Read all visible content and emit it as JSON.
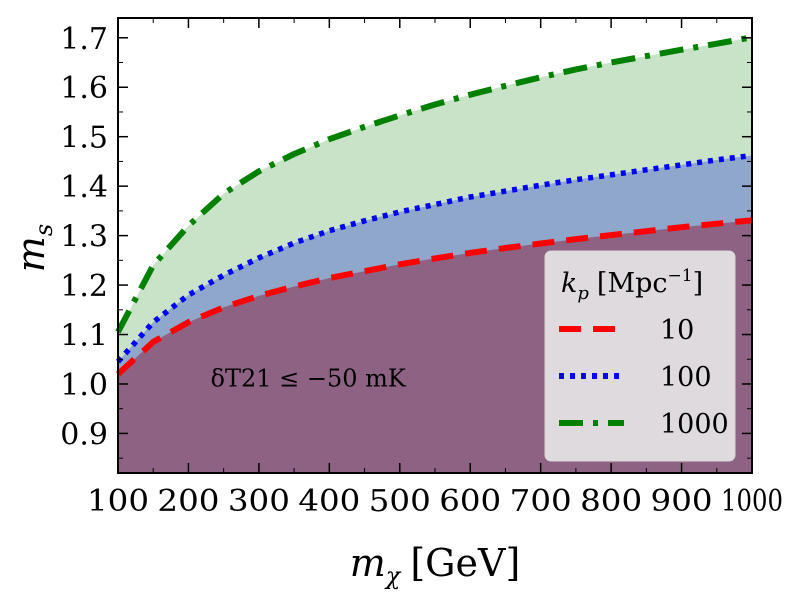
{
  "chart_data": {
    "type": "area",
    "title": "",
    "xlabel": {
      "symbol": "m",
      "sub": "χ",
      "unit": "[GeV]"
    },
    "ylabel": {
      "symbol": "m",
      "sub": "s"
    },
    "xlim": [
      100,
      1000
    ],
    "ylim": [
      0.82,
      1.74
    ],
    "xticks": [
      100,
      200,
      300,
      400,
      500,
      600,
      700,
      800,
      900,
      1000
    ],
    "xtick_labels": [
      "100",
      "200",
      "300",
      "400",
      "500",
      "600",
      "700",
      "800",
      "900",
      "1000"
    ],
    "yticks": [
      0.9,
      1.0,
      1.1,
      1.2,
      1.3,
      1.4,
      1.5,
      1.6,
      1.7
    ],
    "ytick_labels": [
      "0.9",
      "1.0",
      "1.1",
      "1.2",
      "1.3",
      "1.4",
      "1.5",
      "1.6",
      "1.7"
    ],
    "grid": false,
    "x": [
      100,
      150,
      200,
      250,
      300,
      350,
      400,
      450,
      500,
      550,
      600,
      650,
      700,
      750,
      800,
      850,
      900,
      950,
      1000
    ],
    "series": [
      {
        "name": "10",
        "color": "#ff0000",
        "fill": "#8e6283",
        "style": "dashed",
        "values": [
          1.02,
          1.085,
          1.125,
          1.155,
          1.178,
          1.197,
          1.214,
          1.228,
          1.242,
          1.254,
          1.265,
          1.275,
          1.284,
          1.293,
          1.301,
          1.309,
          1.317,
          1.324,
          1.331
        ]
      },
      {
        "name": "100",
        "color": "#0000ff",
        "fill": "#8fa7cb",
        "style": "dotted",
        "values": [
          1.045,
          1.125,
          1.18,
          1.22,
          1.255,
          1.285,
          1.31,
          1.33,
          1.348,
          1.363,
          1.378,
          1.39,
          1.402,
          1.413,
          1.423,
          1.433,
          1.443,
          1.453,
          1.462
        ]
      },
      {
        "name": "1000",
        "color": "#008000",
        "fill": "#c9e3c9",
        "style": "dashdot",
        "values": [
          1.105,
          1.24,
          1.32,
          1.385,
          1.43,
          1.465,
          1.495,
          1.52,
          1.543,
          1.565,
          1.585,
          1.603,
          1.62,
          1.636,
          1.65,
          1.663,
          1.676,
          1.688,
          1.701
        ]
      }
    ],
    "annotations": [
      {
        "text": "δT21 ≤ −50 mK",
        "x": 370,
        "y": 0.995
      }
    ],
    "legend": {
      "placement": "lower-right",
      "title": {
        "symbol": "k",
        "sub": "p",
        "unit": "[Mpc",
        "sup": "−1",
        "close": "]"
      },
      "entries": [
        "10",
        "100",
        "1000"
      ]
    }
  }
}
